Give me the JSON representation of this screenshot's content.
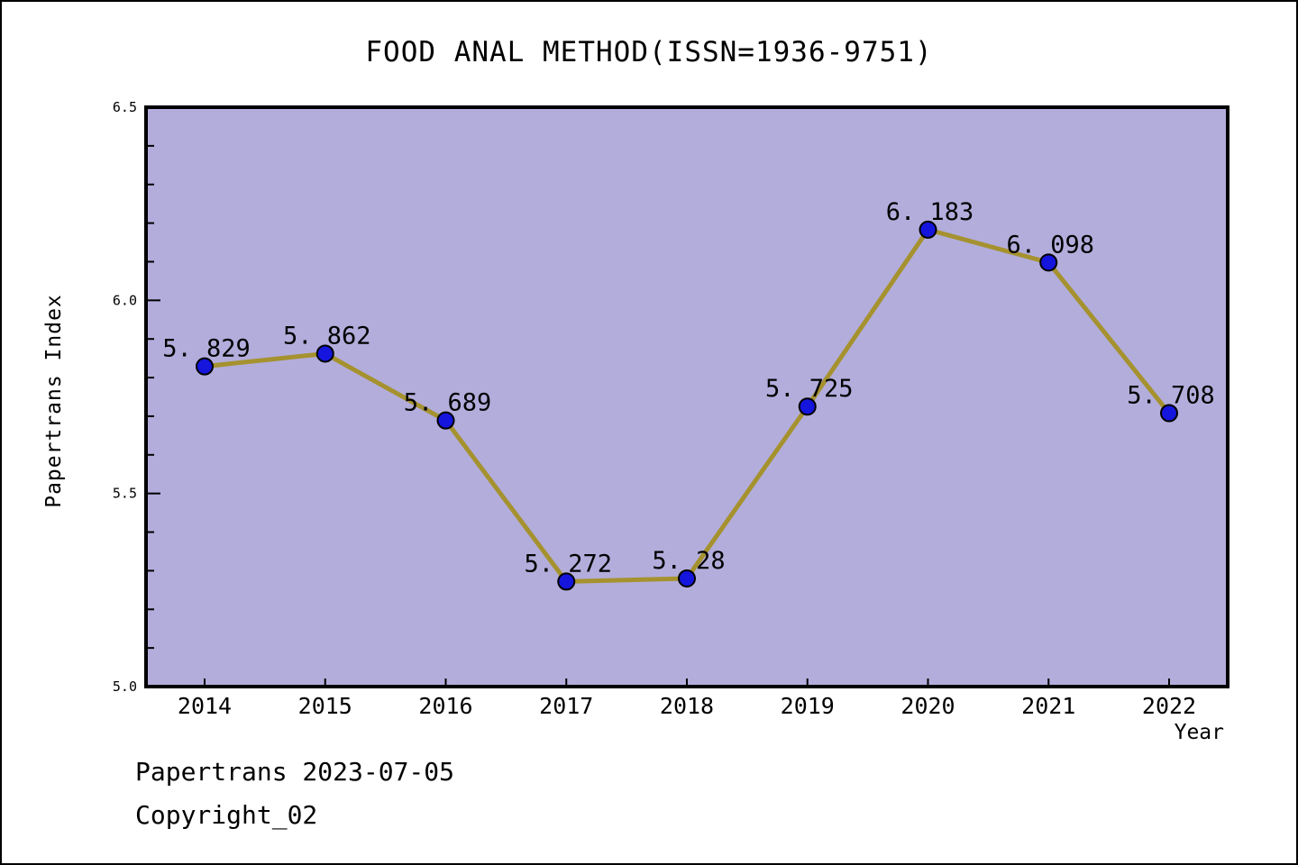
{
  "figure": {
    "title": "FOOD ANAL METHOD(ISSN=1936-9751)",
    "footer_line1": "Papertrans 2023-07-05",
    "footer_line2": "Copyright_02"
  },
  "chart_data": {
    "type": "line",
    "title": "FOOD ANAL METHOD(ISSN=1936-9751)",
    "xlabel": "Year",
    "ylabel": "Papertrans Index",
    "categories": [
      "2014",
      "2015",
      "2016",
      "2017",
      "2018",
      "2019",
      "2020",
      "2021",
      "2022"
    ],
    "values": [
      5.829,
      5.862,
      5.689,
      5.272,
      5.28,
      5.725,
      6.183,
      6.098,
      5.708
    ],
    "point_labels": [
      "5. 829",
      "5. 862",
      "5. 689",
      "5. 272",
      "5. 28",
      "5. 725",
      "6. 183",
      "6. 098",
      "5. 708"
    ],
    "ylim": [
      5.0,
      6.5
    ],
    "ytick_labels": [
      "5.0",
      "5.5",
      "6.0",
      "6.5"
    ],
    "ytick_values": [
      5.0,
      5.5,
      6.0,
      6.5
    ],
    "y_minor_tick_step": 0.1,
    "grid": false,
    "legend": null,
    "series_name": "Papertrans Index"
  },
  "style": {
    "plot_background": "#b3addc",
    "figure_background": "#ffffff",
    "line_color": "#a5922f",
    "marker_fill": "#1515dd",
    "marker_edge": "#000000",
    "axis_color": "#000000",
    "text_color": "#000000"
  }
}
